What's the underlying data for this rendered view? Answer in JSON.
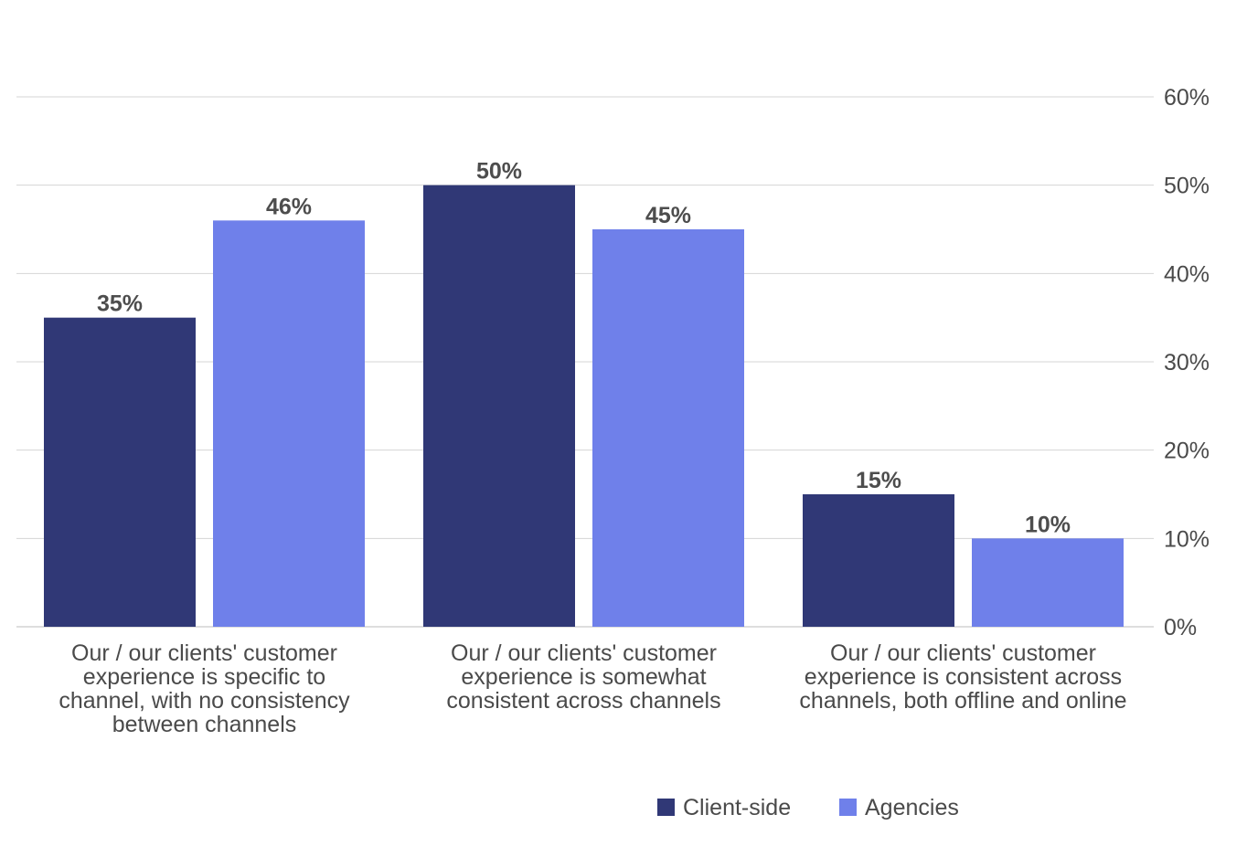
{
  "chart_data": {
    "type": "bar",
    "categories": [
      [
        "Our / our clients' customer",
        "experience is specific to",
        "channel, with no consistency",
        "between channels"
      ],
      [
        "Our / our clients' customer",
        "experience is somewhat",
        "consistent across channels"
      ],
      [
        "Our / our clients' customer",
        "experience is consistent across",
        "channels, both offline and online"
      ]
    ],
    "series": [
      {
        "name": "Client-side",
        "values": [
          35,
          50,
          15
        ],
        "labels": [
          "35%",
          "50%",
          "15%"
        ],
        "color": "#303876"
      },
      {
        "name": "Agencies",
        "values": [
          46,
          45,
          10
        ],
        "labels": [
          "46%",
          "45%",
          "10%"
        ],
        "color": "#6f80ea"
      }
    ],
    "ylim": [
      0,
      60
    ],
    "yticks": [
      0,
      10,
      20,
      30,
      40,
      50,
      60
    ],
    "ytick_labels": [
      "0%",
      "10%",
      "20%",
      "30%",
      "40%",
      "50%",
      "60%"
    ],
    "y_axis_side": "right",
    "grid": true,
    "legend_placement": "bottom-right",
    "title": "",
    "xlabel": "",
    "ylabel": ""
  }
}
